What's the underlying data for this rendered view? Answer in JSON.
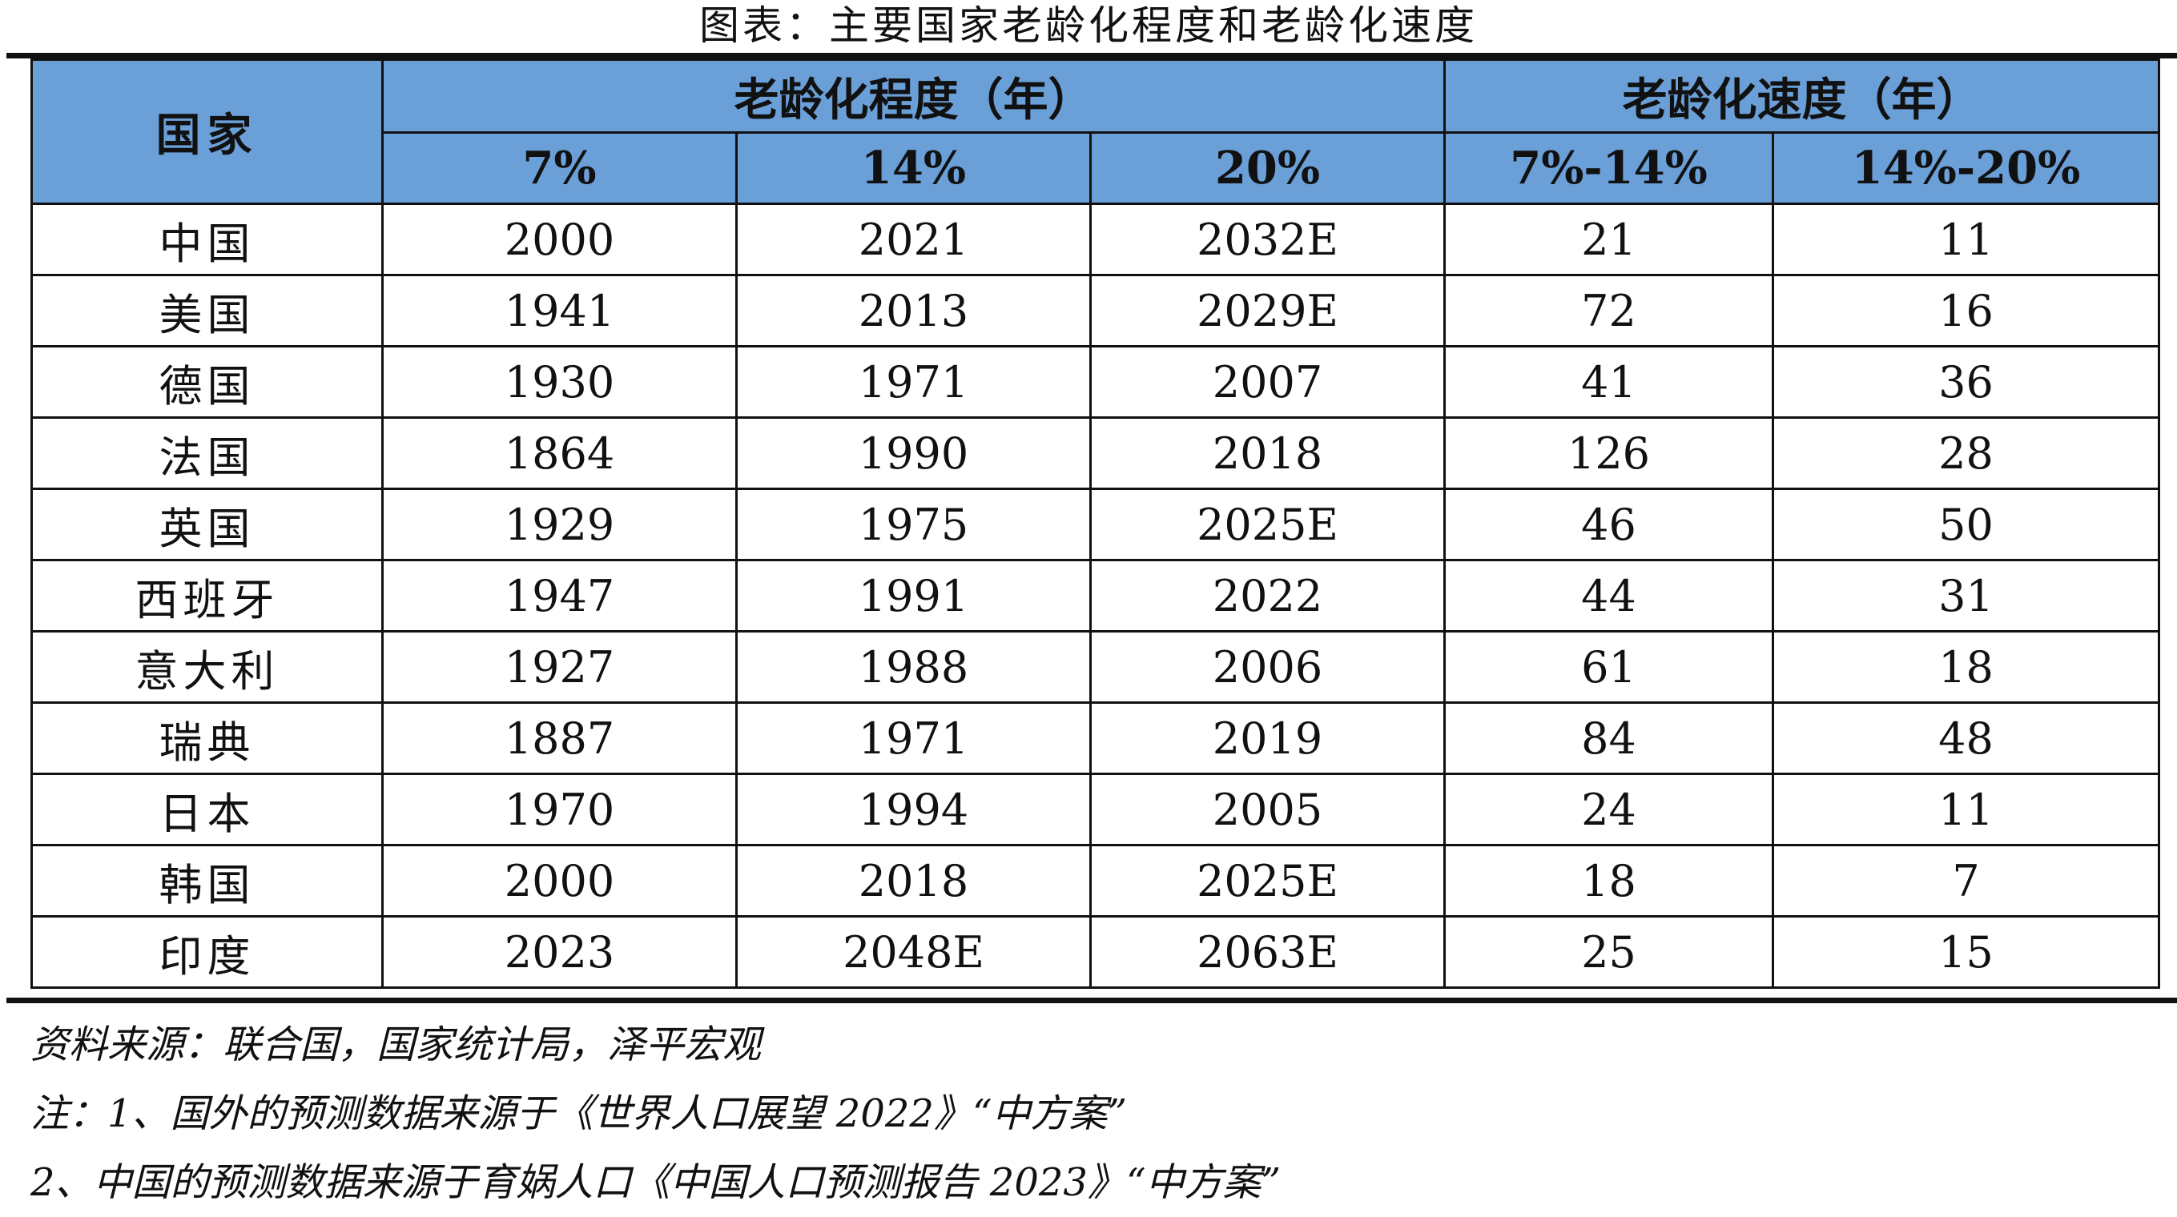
{
  "title": "图表：主要国家老龄化程度和老龄化速度",
  "table": {
    "country_header": "国家",
    "group_headers": [
      "老龄化程度（年）",
      "老龄化速度（年）"
    ],
    "sub_headers": [
      "7%",
      "14%",
      "20%",
      "7%-14%",
      "14%-20%"
    ],
    "rows": [
      {
        "country": "中国",
        "values": [
          "2000",
          "2021",
          "2032E",
          "21",
          "11"
        ]
      },
      {
        "country": "美国",
        "values": [
          "1941",
          "2013",
          "2029E",
          "72",
          "16"
        ]
      },
      {
        "country": "德国",
        "values": [
          "1930",
          "1971",
          "2007",
          "41",
          "36"
        ]
      },
      {
        "country": "法国",
        "values": [
          "1864",
          "1990",
          "2018",
          "126",
          "28"
        ]
      },
      {
        "country": "英国",
        "values": [
          "1929",
          "1975",
          "2025E",
          "46",
          "50"
        ]
      },
      {
        "country": "西班牙",
        "values": [
          "1947",
          "1991",
          "2022",
          "44",
          "31"
        ]
      },
      {
        "country": "意大利",
        "values": [
          "1927",
          "1988",
          "2006",
          "61",
          "18"
        ]
      },
      {
        "country": "瑞典",
        "values": [
          "1887",
          "1971",
          "2019",
          "84",
          "48"
        ]
      },
      {
        "country": "日本",
        "values": [
          "1970",
          "1994",
          "2005",
          "24",
          "11"
        ]
      },
      {
        "country": "韩国",
        "values": [
          "2000",
          "2018",
          "2025E",
          "18",
          "7"
        ]
      },
      {
        "country": "印度",
        "values": [
          "2023",
          "2048E",
          "2063E",
          "25",
          "15"
        ]
      }
    ]
  },
  "notes": {
    "source": "资料来源：联合国，国家统计局，泽平宏观",
    "note1": "注：1、国外的预测数据来源于《世界人口展望 2022》“中方案”",
    "note2": "2、中国的预测数据来源于育娲人口《中国人口预测报告 2023》“中方案”"
  },
  "colors": {
    "header_background": "#6a9fd8",
    "rule": "#111111"
  }
}
